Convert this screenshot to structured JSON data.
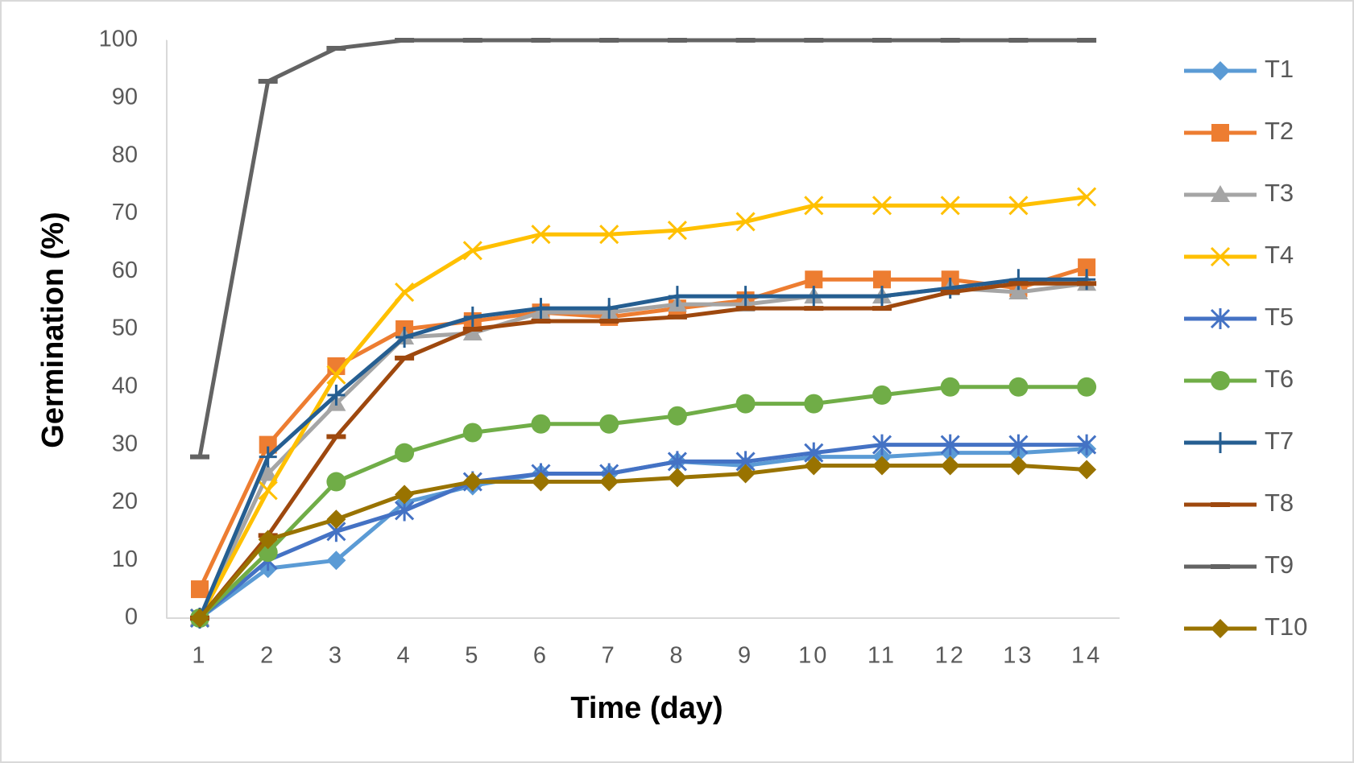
{
  "chart_data": {
    "type": "line",
    "x_label": "Time (day)",
    "y_label": "Germination (%)",
    "categories": [
      1,
      2,
      3,
      4,
      5,
      6,
      7,
      8,
      9,
      10,
      11,
      12,
      13,
      14
    ],
    "ylim": [
      0,
      100
    ],
    "yticks": [
      0,
      10,
      20,
      30,
      40,
      50,
      60,
      70,
      80,
      90,
      100
    ],
    "legend": "right",
    "series": [
      {
        "name": "T1",
        "color": "#5B9BD5",
        "marker": "diamond",
        "values": [
          0,
          8.6,
          10,
          20,
          22.9,
          25,
          25,
          27.1,
          26.4,
          27.9,
          27.9,
          28.6,
          28.6,
          29.3
        ]
      },
      {
        "name": "T2",
        "color": "#ED7D31",
        "marker": "square",
        "values": [
          5,
          30,
          43.6,
          50,
          51.4,
          52.9,
          52.1,
          53.6,
          55,
          58.6,
          58.6,
          58.6,
          57.1,
          60.7
        ]
      },
      {
        "name": "T3",
        "color": "#A5A5A5",
        "marker": "triangle",
        "values": [
          0,
          25,
          37.1,
          48.6,
          49.3,
          52.9,
          52.9,
          54.3,
          54.3,
          55.7,
          55.7,
          57.1,
          56.4,
          57.9
        ]
      },
      {
        "name": "T4",
        "color": "#FFC000",
        "marker": "x",
        "values": [
          0,
          22.1,
          42.1,
          56.4,
          63.6,
          66.4,
          66.4,
          67.1,
          68.6,
          71.4,
          71.4,
          71.4,
          71.4,
          72.9
        ]
      },
      {
        "name": "T5",
        "color": "#4472C4",
        "marker": "star",
        "values": [
          0,
          10,
          15,
          18.6,
          23.6,
          25,
          25,
          27.1,
          27.1,
          28.6,
          30,
          30,
          30,
          30
        ]
      },
      {
        "name": "T6",
        "color": "#70AD47",
        "marker": "circle",
        "values": [
          0,
          11.4,
          23.6,
          28.6,
          32.1,
          33.6,
          33.6,
          35,
          37.1,
          37.1,
          38.6,
          40,
          40,
          40
        ]
      },
      {
        "name": "T7",
        "color": "#255E91",
        "marker": "plus",
        "values": [
          0,
          27.9,
          38.6,
          48.6,
          52.1,
          53.6,
          53.6,
          55.7,
          55.7,
          55.7,
          55.7,
          57.1,
          58.6,
          58.6
        ]
      },
      {
        "name": "T8",
        "color": "#9E480E",
        "marker": "dash",
        "values": [
          0,
          14.3,
          31.4,
          45,
          50,
          51.4,
          51.4,
          52.1,
          53.6,
          53.6,
          53.6,
          56.4,
          57.9,
          57.9
        ]
      },
      {
        "name": "T9",
        "color": "#636363",
        "marker": "dash",
        "values": [
          27.9,
          92.9,
          98.6,
          100,
          100,
          100,
          100,
          100,
          100,
          100,
          100,
          100,
          100,
          100
        ]
      },
      {
        "name": "T10",
        "color": "#997300",
        "marker": "diamond",
        "values": [
          0,
          13.6,
          17.1,
          21.4,
          23.6,
          23.6,
          23.6,
          24.3,
          25,
          26.4,
          26.4,
          26.4,
          26.4,
          25.7
        ]
      }
    ]
  }
}
